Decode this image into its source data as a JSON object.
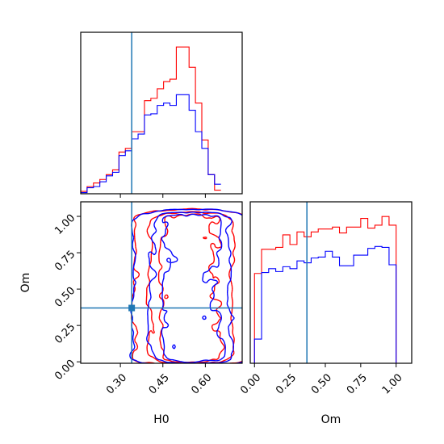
{
  "chart_data": [
    {
      "panel": "H0 marginal",
      "type": "histogram",
      "xlim": [
        0.16,
        0.73
      ],
      "truth": 0.34,
      "bins_start": 0.16,
      "bin_width": 0.0225,
      "series": [
        {
          "color": "#ff0000",
          "counts": [
            2,
            6,
            9,
            12,
            16,
            20,
            35,
            38,
            52,
            52,
            78,
            80,
            88,
            94,
            96,
            123,
            123,
            106,
            76,
            45,
            16,
            3
          ]
        },
        {
          "color": "#0000ff",
          "counts": [
            1,
            5,
            6,
            10,
            15,
            18,
            32,
            36,
            46,
            50,
            66,
            67,
            74,
            76,
            74,
            83,
            83,
            70,
            52,
            38,
            16,
            8
          ]
        }
      ]
    },
    {
      "panel": "Om vs H0 joint",
      "type": "contour",
      "xlabel": "H0",
      "ylabel": "Om",
      "xlim": [
        0.16,
        0.73
      ],
      "ylim": [
        -0.01,
        1.1
      ],
      "xticks": [
        "0.30",
        "0.45",
        "0.60"
      ],
      "yticks": [
        "0.00",
        "0.25",
        "0.50",
        "0.75",
        "1.00"
      ],
      "truth_x": 0.34,
      "truth_y": 0.37,
      "series": [
        {
          "color": "#ff0000"
        },
        {
          "color": "#0000ff"
        }
      ]
    },
    {
      "panel": "Om marginal",
      "type": "histogram",
      "xlabel": "Om",
      "xlim": [
        -0.03,
        1.11
      ],
      "xticks": [
        "0.00",
        "0.25",
        "0.50",
        "0.75",
        "1.00"
      ],
      "truth": 0.37,
      "bins_start": 0.0,
      "bin_width": 0.05,
      "series": [
        {
          "color": "#ff0000",
          "counts": [
            93,
            118,
            118,
            120,
            133,
            123,
            136,
            131,
            136,
            139,
            139,
            141,
            135,
            141,
            141,
            150,
            140,
            143,
            152,
            143,
            0
          ]
        },
        {
          "color": "#0000ff",
          "counts": [
            25,
            94,
            98,
            95,
            100,
            98,
            106,
            104,
            109,
            110,
            116,
            110,
            101,
            101,
            112,
            112,
            119,
            121,
            120,
            102,
            0
          ]
        }
      ]
    }
  ]
}
